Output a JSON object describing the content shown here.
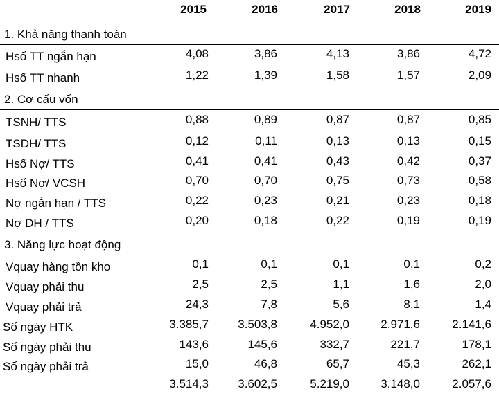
{
  "years": [
    "2015",
    "2016",
    "2017",
    "2018",
    "2019"
  ],
  "sections": [
    {
      "title": "1. Khả năng thanh toán"
    },
    {
      "title": "2. Cơ cấu vốn"
    },
    {
      "title": "3. Năng lực hoạt động"
    }
  ],
  "rows": [
    {
      "label": "Hsố TT ngắn hạn",
      "values": [
        "4,08",
        "3,86",
        "4,13",
        "3,86",
        "4,72"
      ]
    },
    {
      "label": "Hsố TT nhanh",
      "values": [
        "1,22",
        "1,39",
        "1,58",
        "1,57",
        "2,09"
      ]
    },
    {
      "label": "TSNH/ TTS",
      "values": [
        "0,88",
        "0,89",
        "0,87",
        "0,87",
        "0,85"
      ]
    },
    {
      "label": "TSDH/ TTS",
      "values": [
        "0,12",
        "0,11",
        "0,13",
        "0,13",
        "0,15"
      ]
    },
    {
      "label": "Hsố Nợ/ TTS",
      "values": [
        "0,41",
        "0,41",
        "0,43",
        "0,42",
        "0,37"
      ]
    },
    {
      "label": "Hsố Nợ/ VCSH",
      "values": [
        "0,70",
        "0,70",
        "0,75",
        "0,73",
        "0,58"
      ]
    },
    {
      "label": "Nợ ngắn hạn / TTS",
      "values": [
        "0,22",
        "0,23",
        "0,21",
        "0,23",
        "0,18"
      ]
    },
    {
      "label": "Nợ DH / TTS",
      "values": [
        "0,20",
        "0,18",
        "0,22",
        "0,19",
        "0,19"
      ]
    },
    {
      "label": "Vquay hàng tồn kho",
      "values": [
        "0,1",
        "0,1",
        "0,1",
        "0,1",
        "0,2"
      ]
    },
    {
      "label": "Vquay phải thu",
      "values": [
        "2,5",
        "2,5",
        "1,1",
        "1,6",
        "2,0"
      ]
    },
    {
      "label": "Vquay phải trả",
      "values": [
        "24,3",
        "7,8",
        "5,6",
        "8,1",
        "1,4"
      ]
    },
    {
      "label": "Số ngày HTK",
      "values": [
        "3.385,7",
        "3.503,8",
        "4.952,0",
        "2.971,6",
        "2.141,6"
      ]
    },
    {
      "label": "Số ngày phải thu",
      "values": [
        "143,6",
        "145,6",
        "332,7",
        "221,7",
        "178,1"
      ]
    },
    {
      "label": "Số ngày phải trả",
      "values": [
        "15,0",
        "46,8",
        "65,7",
        "45,3",
        "262,1"
      ]
    },
    {
      "label": "",
      "values": [
        "3.514,3",
        "3.602,5",
        "5.219,0",
        "3.148,0",
        "2.057,6"
      ]
    }
  ]
}
